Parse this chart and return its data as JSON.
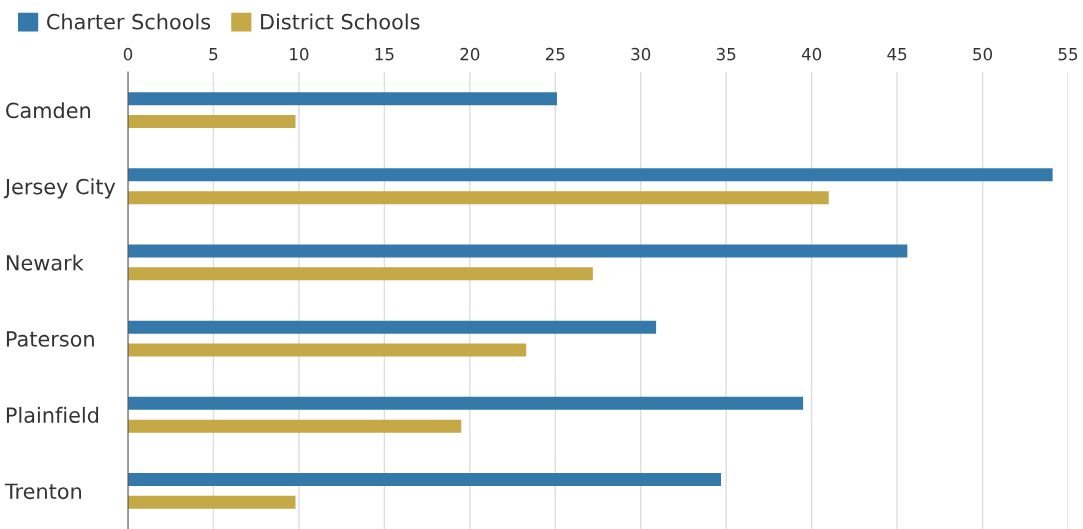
{
  "chart_data": {
    "type": "bar",
    "orientation": "horizontal",
    "categories": [
      "Camden",
      "Jersey City",
      "Newark",
      "Paterson",
      "Plainfield",
      "Trenton"
    ],
    "series": [
      {
        "name": "Charter Schools",
        "color": "#3578aa",
        "values": [
          25.1,
          54.1,
          45.6,
          30.9,
          39.5,
          34.7
        ]
      },
      {
        "name": "District Schools",
        "color": "#c4a946",
        "values": [
          9.8,
          41.0,
          27.2,
          23.3,
          19.5,
          9.8
        ]
      }
    ],
    "xlim": [
      0,
      55
    ],
    "xticks": [
      0,
      5,
      10,
      15,
      20,
      25,
      30,
      35,
      40,
      45,
      50,
      55
    ],
    "grid": "x",
    "legend": "top left"
  }
}
